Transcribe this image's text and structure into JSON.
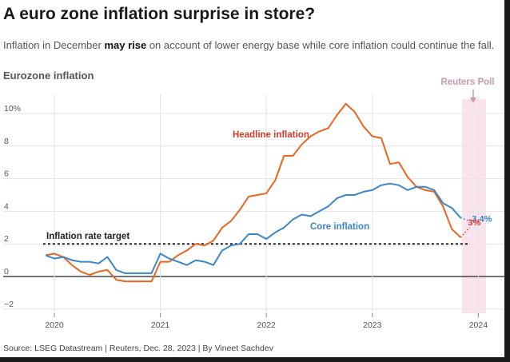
{
  "header": {
    "title": "A euro zone inflation surprise in store?",
    "subtitle_pre": "Inflation in December ",
    "subtitle_bold": "may rise",
    "subtitle_post": " on account of lower energy base while core inflation could continue the fall."
  },
  "source": "Source: LSEG Datastream | Reuters, Dec. 28, 2023 | By Vineet Sachdev",
  "colors": {
    "headline": "#e8661f",
    "core": "#3a86c8",
    "target": "#222222",
    "forecast_band": "#f9e4ee",
    "poll_text": "#c39ab2",
    "headline_label": "#d93a2b"
  },
  "chart_data": {
    "type": "line",
    "title": "Eurozone inflation",
    "xlabel": "",
    "ylabel": "",
    "ylim": [
      -2,
      11
    ],
    "yticks": [
      -2,
      0,
      2,
      4,
      6,
      8,
      10
    ],
    "ytick_labels": [
      "−2",
      "0",
      "2",
      "4",
      "6",
      "8",
      "10%"
    ],
    "xlim": [
      "2019-11",
      "2024-03"
    ],
    "xticks": [
      "2020",
      "2021",
      "2022",
      "2023",
      "2024"
    ],
    "grid": true,
    "x": [
      "2019-12",
      "2020-01",
      "2020-02",
      "2020-03",
      "2020-04",
      "2020-05",
      "2020-06",
      "2020-07",
      "2020-08",
      "2020-09",
      "2020-10",
      "2020-11",
      "2020-12",
      "2021-01",
      "2021-02",
      "2021-03",
      "2021-04",
      "2021-05",
      "2021-06",
      "2021-07",
      "2021-08",
      "2021-09",
      "2021-10",
      "2021-11",
      "2021-12",
      "2022-01",
      "2022-02",
      "2022-03",
      "2022-04",
      "2022-05",
      "2022-06",
      "2022-07",
      "2022-08",
      "2022-09",
      "2022-10",
      "2022-11",
      "2022-12",
      "2023-01",
      "2023-02",
      "2023-03",
      "2023-04",
      "2023-05",
      "2023-06",
      "2023-07",
      "2023-08",
      "2023-09",
      "2023-10",
      "2023-11"
    ],
    "series": [
      {
        "name": "Headline inflation",
        "values": [
          1.3,
          1.4,
          1.2,
          0.7,
          0.3,
          0.1,
          0.3,
          0.4,
          -0.2,
          -0.3,
          -0.3,
          -0.3,
          -0.3,
          0.9,
          0.9,
          1.3,
          1.6,
          2.0,
          1.9,
          2.2,
          3.0,
          3.4,
          4.1,
          4.9,
          5.0,
          5.1,
          5.9,
          7.4,
          7.4,
          8.1,
          8.6,
          8.9,
          9.1,
          9.9,
          10.6,
          10.1,
          9.2,
          8.6,
          8.5,
          6.9,
          7.0,
          6.1,
          5.5,
          5.3,
          5.2,
          4.3,
          2.9,
          2.4
        ]
      },
      {
        "name": "Core inflation",
        "values": [
          1.3,
          1.1,
          1.2,
          1.0,
          0.9,
          0.9,
          0.8,
          1.2,
          0.4,
          0.2,
          0.2,
          0.2,
          0.2,
          1.4,
          1.1,
          0.9,
          0.7,
          1.0,
          0.9,
          0.7,
          1.6,
          1.9,
          2.0,
          2.6,
          2.6,
          2.3,
          2.7,
          3.0,
          3.5,
          3.8,
          3.7,
          4.0,
          4.3,
          4.8,
          5.0,
          5.0,
          5.2,
          5.3,
          5.6,
          5.7,
          5.6,
          5.3,
          5.5,
          5.5,
          5.3,
          4.5,
          4.2,
          3.6
        ]
      }
    ],
    "forecast": {
      "label": "Reuters Poll",
      "x": "2023-12",
      "headline": 3.0,
      "core": 3.4,
      "headline_label": "3%",
      "core_label": "3.4%"
    },
    "target": {
      "label": "Inflation rate target",
      "value": 2
    },
    "annotations": {
      "headline": "Headline inflation",
      "core": "Core inflation"
    }
  }
}
